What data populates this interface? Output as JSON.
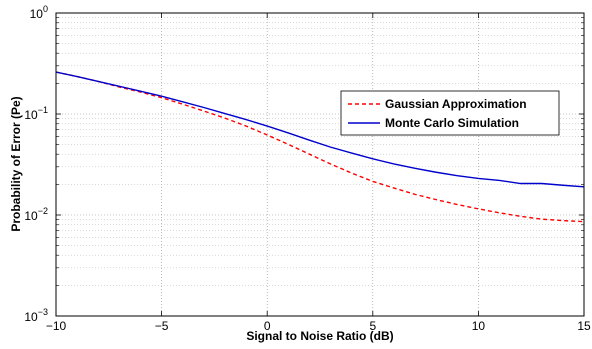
{
  "chart_data": {
    "type": "line",
    "xlabel": "Signal to Noise Ratio (dB)",
    "ylabel": "Probability of Error (Pe)",
    "xlim": [
      -10,
      15
    ],
    "ylim": [
      0.001,
      1
    ],
    "yscale": "log",
    "grid": true,
    "legend_position": "center-right",
    "x_ticks": [
      -10,
      -5,
      0,
      5,
      10,
      15
    ],
    "x_tick_labels": [
      "−10",
      "−5",
      "0",
      "5",
      "10",
      "15"
    ],
    "y_ticks": [
      {
        "value": 1,
        "base": "10",
        "exp": "0"
      },
      {
        "value": 0.1,
        "base": "10",
        "exp": "−1"
      },
      {
        "value": 0.01,
        "base": "10",
        "exp": "−2"
      },
      {
        "value": 0.001,
        "base": "10",
        "exp": "−3"
      }
    ],
    "series": [
      {
        "name": "Gaussian Approximation",
        "color": "#ff0000",
        "dash": "dashed",
        "x": [
          -10,
          -9,
          -8,
          -7,
          -6,
          -5,
          -4,
          -3,
          -2,
          -1,
          0,
          1,
          2,
          3,
          4,
          5,
          6,
          7,
          8,
          9,
          10,
          11,
          12,
          13,
          14,
          15
        ],
        "y": [
          0.26,
          0.235,
          0.21,
          0.185,
          0.165,
          0.145,
          0.125,
          0.107,
          0.091,
          0.076,
          0.062,
          0.05,
          0.04,
          0.032,
          0.026,
          0.0215,
          0.0185,
          0.016,
          0.0142,
          0.0127,
          0.0115,
          0.0105,
          0.0097,
          0.0091,
          0.0088,
          0.0086
        ]
      },
      {
        "name": "Monte Carlo Simulation",
        "color": "#0000cc",
        "dash": "solid",
        "x": [
          -10,
          -9,
          -8,
          -7,
          -6,
          -5,
          -4,
          -3,
          -2,
          -1,
          0,
          1,
          2,
          3,
          4,
          5,
          6,
          7,
          8,
          9,
          10,
          11,
          12,
          13,
          14,
          15
        ],
        "y": [
          0.26,
          0.235,
          0.21,
          0.188,
          0.168,
          0.15,
          0.132,
          0.116,
          0.101,
          0.088,
          0.076,
          0.065,
          0.055,
          0.047,
          0.041,
          0.036,
          0.032,
          0.029,
          0.0265,
          0.0245,
          0.023,
          0.022,
          0.0205,
          0.0205,
          0.0197,
          0.019
        ]
      }
    ]
  }
}
